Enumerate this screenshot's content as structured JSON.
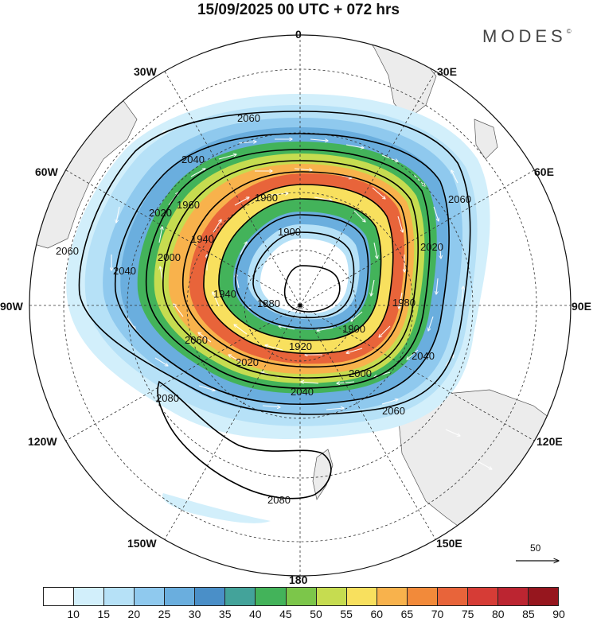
{
  "title": "15/09/2025  00 UTC  + 072 hrs",
  "brand": "MODES",
  "brand_mark": "©",
  "longitude_labels": {
    "n0": "0",
    "e30": "30E",
    "e60": "60E",
    "e90": "90E",
    "e120": "120E",
    "e150": "150E",
    "s180": "180",
    "w150": "150W",
    "w120": "120W",
    "w90": "90W",
    "w60": "60W",
    "w30": "30W"
  },
  "contour_labels": {
    "c2060_top": "2060",
    "c2040_left": "2040",
    "c1960_a": "1960",
    "c1960_b": "1960",
    "c2020_left": "2020",
    "c1940_a": "1940",
    "c1900_top": "1900",
    "c2000_left": "2000",
    "c2020_right": "2020",
    "c2060_right": "2060",
    "c2060_left": "2060",
    "c2040_w": "2040",
    "c1980": "1980",
    "c1940_b": "1940",
    "c1880": "1880",
    "c1900_r": "1900",
    "c1920": "1920",
    "c2060_lower": "2060",
    "c2020_low": "2020",
    "c2000_low": "2000",
    "c2040_low": "2040",
    "c2060_low": "2060",
    "c2040_br": "2040",
    "c2080_a": "2080",
    "c2080_b": "2080"
  },
  "reference_vector_label": "50",
  "colorbar": {
    "labels": [
      "10",
      "15",
      "20",
      "25",
      "30",
      "35",
      "40",
      "45",
      "50",
      "55",
      "60",
      "65",
      "70",
      "75",
      "80",
      "85",
      "90"
    ],
    "colors": [
      "#ffffff",
      "#d2effb",
      "#b6e1f7",
      "#8fc9ee",
      "#6aaede",
      "#4a8fc8",
      "#43a39a",
      "#43b35a",
      "#7cc64a",
      "#c6dc50",
      "#f8e05e",
      "#f8b24c",
      "#f28a3a",
      "#e8643a",
      "#d63c36",
      "#bc2531",
      "#96161e"
    ]
  }
}
